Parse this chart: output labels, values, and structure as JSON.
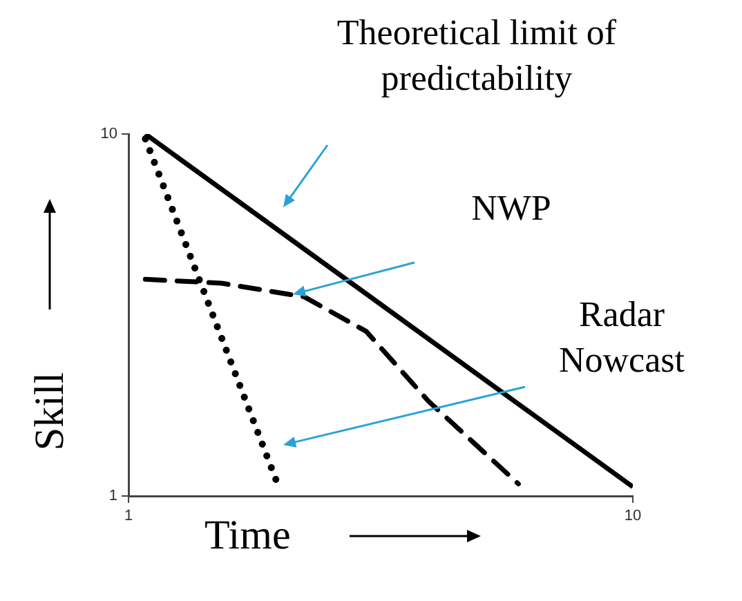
{
  "chart_data": {
    "type": "line",
    "xlabel": "Time",
    "ylabel": "Skill",
    "log": "xy",
    "xlim": [
      1,
      10
    ],
    "ylim": [
      1,
      10
    ],
    "xticks": [
      1,
      10
    ],
    "yticks": [
      1,
      10
    ],
    "grid": false,
    "legend": false,
    "marker": "none",
    "series": [
      {
        "color": "#000000",
        "line_style": "solid",
        "x": [
          1.08,
          10
        ],
        "values": [
          10,
          1.06
        ]
      },
      {
        "color": "#000000",
        "line_style": "dashed",
        "x": [
          1.08,
          1.53,
          2.23,
          2.96,
          3.93,
          5.93
        ],
        "values": [
          3.97,
          3.87,
          3.55,
          2.85,
          1.83,
          1.08
        ]
      },
      {
        "color": "#000000",
        "line_style": "dotted",
        "x": [
          1.08,
          1.96
        ],
        "values": [
          9.7,
          1.11
        ]
      }
    ],
    "annotations": [
      "Theoretical limit of predictability",
      "NWP",
      "Radar Nowcast"
    ]
  }
}
